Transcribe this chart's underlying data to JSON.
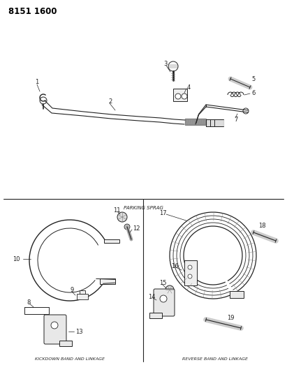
{
  "title_code": "8151 1600",
  "background_color": "#ffffff",
  "line_color": "#222222",
  "section_labels": {
    "parking_sprag": "PARKING SPRAG",
    "kickdown": "KICKDOWN BAND AND LINKAGE",
    "reverse": "REVERSE BAND AND LINKAGE"
  },
  "fig_width": 4.11,
  "fig_height": 5.33,
  "dpi": 100
}
